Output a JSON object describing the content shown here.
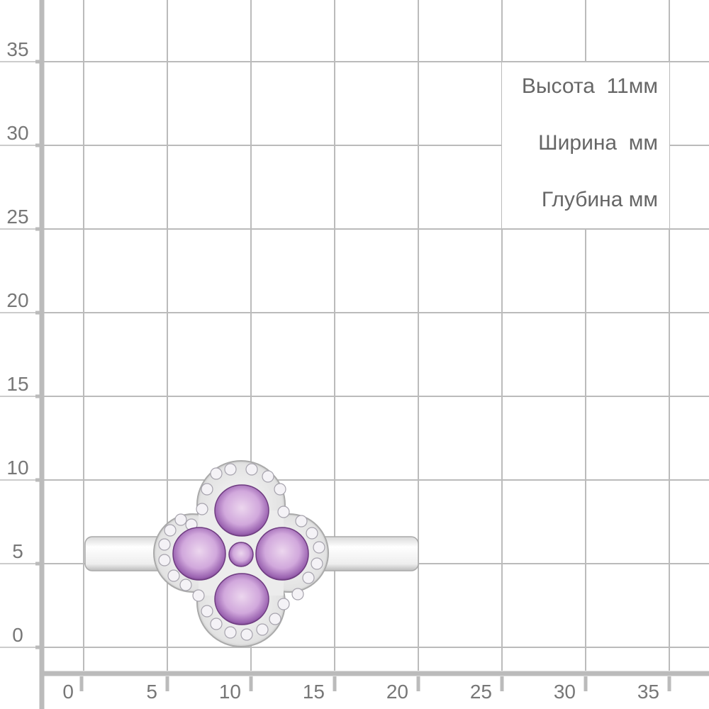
{
  "y_axis_labels": [
    "0",
    "5",
    "10",
    "15",
    "20",
    "25",
    "30",
    "35"
  ],
  "x_axis_labels": [
    "0",
    "5",
    "10",
    "15",
    "20",
    "25",
    "30",
    "35"
  ],
  "dimensions": {
    "height": "Высота  11мм",
    "width": "Ширина  мм",
    "depth": "Глубина мм"
  },
  "colors": {
    "grid": "#bbbbbb",
    "label": "#777777",
    "stone": "#b48ac8"
  }
}
